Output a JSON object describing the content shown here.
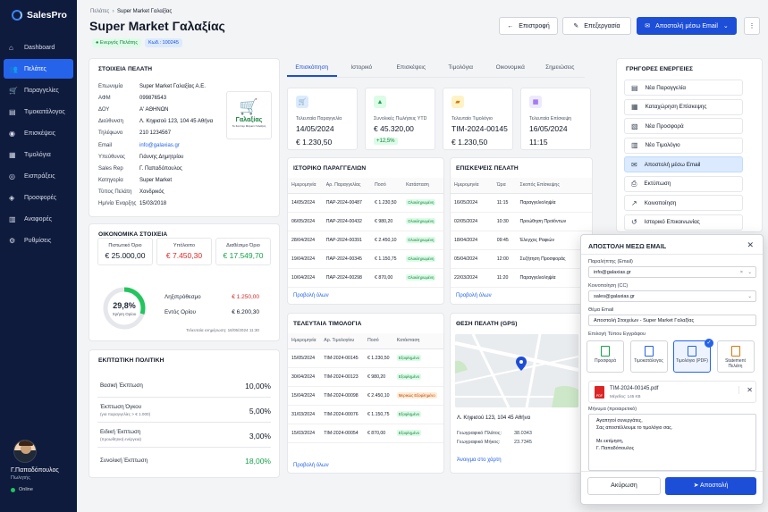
{
  "app": {
    "name": "SalesPro"
  },
  "nav": [
    {
      "label": "Dashboard",
      "icon": "home-icon"
    },
    {
      "label": "Πελάτες",
      "icon": "users-icon"
    },
    {
      "label": "Παραγγελίες",
      "icon": "cart-icon"
    },
    {
      "label": "Τιμοκατάλογος",
      "icon": "book-icon"
    },
    {
      "label": "Επισκέψεις",
      "icon": "pin-icon"
    },
    {
      "label": "Τιμολόγια",
      "icon": "file-icon"
    },
    {
      "label": "Εισπράξεις",
      "icon": "wallet-icon"
    },
    {
      "label": "Προσφορές",
      "icon": "tag-icon"
    },
    {
      "label": "Αναφορές",
      "icon": "chart-icon"
    },
    {
      "label": "Ρυθμίσεις",
      "icon": "gear-icon"
    }
  ],
  "user": {
    "name": "Γ.Παπαδόπουλος",
    "role": "Πωλητής",
    "status": "Online"
  },
  "breadcrumb": {
    "parent": "Πελάτες",
    "current": "Super Market Γαλαξίας"
  },
  "header": {
    "title": "Super Market Γαλαξίας",
    "status_badge": "Ενεργός Πελάτης",
    "code_badge": "Κωδ.: 100245",
    "back": "Επιστροφή",
    "edit": "Επεξεργασία",
    "send": "Αποστολή μέσω Email"
  },
  "customer": {
    "title": "ΣΤΟΙΧΕΙΑ ΠΕΛΑΤΗ",
    "rows": [
      [
        "Επωνυμία",
        "Super Market Γαλαξίας Α.Ε."
      ],
      [
        "ΑΦΜ",
        "099876543"
      ],
      [
        "ΔΟΥ",
        "Α' ΑΘΗΝΩΝ"
      ],
      [
        "Διεύθυνση",
        "Λ. Κηφισού 123, 104 45 Αθήνα"
      ],
      [
        "Τηλέφωνο",
        "210 1234567"
      ],
      [
        "Email",
        "info@galaxias.gr"
      ],
      [
        "Υπεύθυνος",
        "Γιάννης Δημητρίου"
      ],
      [
        "Sales Rep",
        "Γ. Παπαδόπουλος"
      ],
      [
        "Κατηγορία",
        "Super Market"
      ],
      [
        "Τύπος Πελάτη",
        "Χονδρικός"
      ],
      [
        "Ημ/νία Έναρξης",
        "15/03/2018"
      ]
    ],
    "logo_text": "Γαλαξίας",
    "logo_sub": "Το Σούπερ Μάρκετ Γαλαξίας"
  },
  "financial": {
    "title": "ΟΙΚΟΝΟΜΙΚΑ ΣΤΟΙΧΕΙΑ",
    "boxes": [
      {
        "label": "Πιστωτικό Όριο",
        "value": "€ 25.000,00",
        "color": "#111827"
      },
      {
        "label": "Υπόλοιπο",
        "value": "€ 7.450,30",
        "color": "#dc2626"
      },
      {
        "label": "Διαθέσιμο Όριο",
        "value": "€ 17.549,70",
        "color": "#16a34a"
      }
    ],
    "usage_percent": 29.8,
    "usage_label": "29,8%",
    "usage_sub": "Χρήση Ορίου",
    "rows": [
      [
        "Ληξιπρόθεσμο",
        "€ 1.250,00",
        "#dc2626"
      ],
      [
        "Εντός Ορίου",
        "€ 6.200,30",
        "#111827"
      ]
    ],
    "updated": "Τελευταία ενημέρωση: 16/05/2024 11:30"
  },
  "discount": {
    "title": "ΕΚΠΤΩΤΙΚΗ ΠΟΛΙΤΙΚΗ",
    "rows": [
      {
        "label": "Βασική Έκπτωση",
        "sub": "",
        "value": "10,00%",
        "color": "#111827"
      },
      {
        "label": "Έκπτωση Όγκου",
        "sub": "(για παραγγελίες > € 1.000)",
        "value": "5,00%",
        "color": "#111827"
      },
      {
        "label": "Ειδική Έκπτωση",
        "sub": "(προωθητική ενέργεια)",
        "value": "3,00%",
        "color": "#111827"
      },
      {
        "label": "Συνολική Έκπτωση",
        "sub": "",
        "value": "18,00%",
        "color": "#16a34a"
      }
    ]
  },
  "tabs": [
    "Επισκόπηση",
    "Ιστορικό",
    "Επισκέψεις",
    "Τιμολόγια",
    "Οικονομικά",
    "Σημειώσεις"
  ],
  "kpis": [
    {
      "label": "Τελευταία Παραγγελία",
      "v1": "14/05/2024",
      "v2": "€ 1.230,50",
      "icon": "cart-icon",
      "bg": "#dbeafe",
      "fg": "#2563eb"
    },
    {
      "label": "Συνολικές Πωλήσεις YTD",
      "v1": "€ 45.320,00",
      "pill": "+12,5%",
      "icon": "growth-icon",
      "bg": "#dcfce7",
      "fg": "#16a34a"
    },
    {
      "label": "Τελευταίο Τιμολόγιο",
      "v1": "TIM-2024-00145",
      "v2": "€ 1.230,50",
      "icon": "folder-icon",
      "bg": "#fef3c7",
      "fg": "#d97706"
    },
    {
      "label": "Τελευταία Επίσκεψη",
      "v1": "16/05/2024",
      "v2": "11:15",
      "icon": "calendar-icon",
      "bg": "#ede9fe",
      "fg": "#7c3aed"
    }
  ],
  "orders": {
    "title": "ΙΣΤΟΡΙΚΟ ΠΑΡΑΓΓΕΛΙΩΝ",
    "headers": [
      "Ημερομηνία",
      "Αρ. Παραγγελίας",
      "Ποσό",
      "Κατάσταση"
    ],
    "rows": [
      [
        "14/05/2024",
        "ΠΑΡ-2024-00487",
        "€ 1.230,50",
        "Ολοκληρωμένη"
      ],
      [
        "06/05/2024",
        "ΠΑΡ-2024-00432",
        "€ 980,20",
        "Ολοκληρωμένη"
      ],
      [
        "28/04/2024",
        "ΠΑΡ-2024-00391",
        "€ 2.450,10",
        "Ολοκληρωμένη"
      ],
      [
        "19/04/2024",
        "ΠΑΡ-2024-00345",
        "€ 1.150,75",
        "Ολοκληρωμένη"
      ],
      [
        "10/04/2024",
        "ΠΑΡ-2024-00298",
        "€ 870,00",
        "Ολοκληρωμένη"
      ]
    ],
    "more": "Προβολή όλων"
  },
  "visits": {
    "title": "ΕΠΙΣΚΕΨΕΙΣ ΠΕΛΑΤΗ",
    "headers": [
      "Ημερομηνία",
      "Ώρα",
      "Σκοπός Επίσκεψης"
    ],
    "rows": [
      [
        "16/05/2024",
        "11:15",
        "Παραγγελιοληψία"
      ],
      [
        "02/05/2024",
        "10:30",
        "Προώθηση Προϊόντων"
      ],
      [
        "18/04/2024",
        "09:45",
        "Έλεγχος Ραφιών"
      ],
      [
        "05/04/2024",
        "12:00",
        "Συζήτηση Προσφοράς"
      ],
      [
        "22/03/2024",
        "11:20",
        "Παραγγελιοληψία"
      ]
    ],
    "more": "Προβολή όλων"
  },
  "invoices": {
    "title": "ΤΕΛΕΥΤΑΙΑ ΤΙΜΟΛΟΓΙΑ",
    "headers": [
      "Ημερομηνία",
      "Αρ. Τιμολογίου",
      "Ποσό",
      "Κατάσταση"
    ],
    "rows": [
      [
        "15/05/2024",
        "TIM-2024-00145",
        "€ 1.230,50",
        "Εξοφλημένο",
        "g"
      ],
      [
        "30/04/2024",
        "TIM-2024-00123",
        "€ 980,20",
        "Εξοφλημένο",
        "g"
      ],
      [
        "15/04/2024",
        "TIM-2024-00098",
        "€ 2.450,10",
        "Μερικώς Εξοφλημένο",
        "o"
      ],
      [
        "31/03/2024",
        "TIM-2024-00076",
        "€ 1.150,75",
        "Εξοφλημένο",
        "g"
      ],
      [
        "15/03/2024",
        "TIM-2024-00054",
        "€ 870,00",
        "Εξοφλημένο",
        "g"
      ]
    ],
    "more": "Προβολή όλων"
  },
  "location": {
    "title": "ΘΕΣΗ ΠΕΛΑΤΗ (GPS)",
    "address": "Λ. Κηφισού 123, 104 45 Αθήνα",
    "lat_label": "Γεωγραφικό Πλάτος:",
    "lat": "38.0343",
    "lng_label": "Γεωγραφικό Μήκος:",
    "lng": "23.7345",
    "link": "Άνοιγμα στο χάρτη"
  },
  "quick": {
    "title": "ΓΡΗΓΟΡΕΣ ΕΝΕΡΓΕΙΕΣ",
    "items": [
      {
        "label": "Νέα Παραγγελία",
        "icon": "order-icon"
      },
      {
        "label": "Καταχώρηση Επίσκεψης",
        "icon": "calendar-icon"
      },
      {
        "label": "Νέα Προσφορά",
        "icon": "offer-icon"
      },
      {
        "label": "Νέο Τιμολόγιο",
        "icon": "invoice-icon"
      },
      {
        "label": "Αποστολή μέσω Email",
        "icon": "mail-icon"
      },
      {
        "label": "Εκτύπωση",
        "icon": "print-icon"
      },
      {
        "label": "Κοινοποίηση",
        "icon": "share-icon"
      },
      {
        "label": "Ιστορικό Επικοινωνίας",
        "icon": "history-icon"
      }
    ]
  },
  "email_modal": {
    "title": "ΑΠΟΣΤΟΛΗ ΜΕΣΩ EMAIL",
    "to_label": "Παραλήπτης (Email)",
    "to": "info@galaxias.gr",
    "cc_label": "Κοινοποίηση (CC)",
    "cc": "sales@galaxias.gr",
    "subject_label": "Θέμα Email",
    "subject": "Αποστολή Στοιχείων - Super Market Γαλαξίας",
    "doc_label": "Επιλογή Τύπου Εγγράφου",
    "docs": [
      {
        "label": "Προσφορά",
        "color": "#16a34a"
      },
      {
        "label": "Τιμοκατάλογος",
        "color": "#2563eb"
      },
      {
        "label": "Τιμολόγιο (PDF)",
        "color": "#2563eb"
      },
      {
        "label": "Statement Πελάτη",
        "color": "#d97706"
      }
    ],
    "attachment": "TIM-2024-00145.pdf",
    "attachment_size": "Μέγεθος: 145 KB",
    "message_label": "Μήνυμα (προαιρετικό)",
    "message": [
      "Αγαπητοί συνεργάτες,",
      "Σας αποστέλλουμε το τιμολόγιο σας.",
      "",
      "Με εκτίμηση,",
      "Γ. Παπαδόπουλος"
    ],
    "cancel": "Ακύρωση",
    "send": "Αποστολή"
  }
}
